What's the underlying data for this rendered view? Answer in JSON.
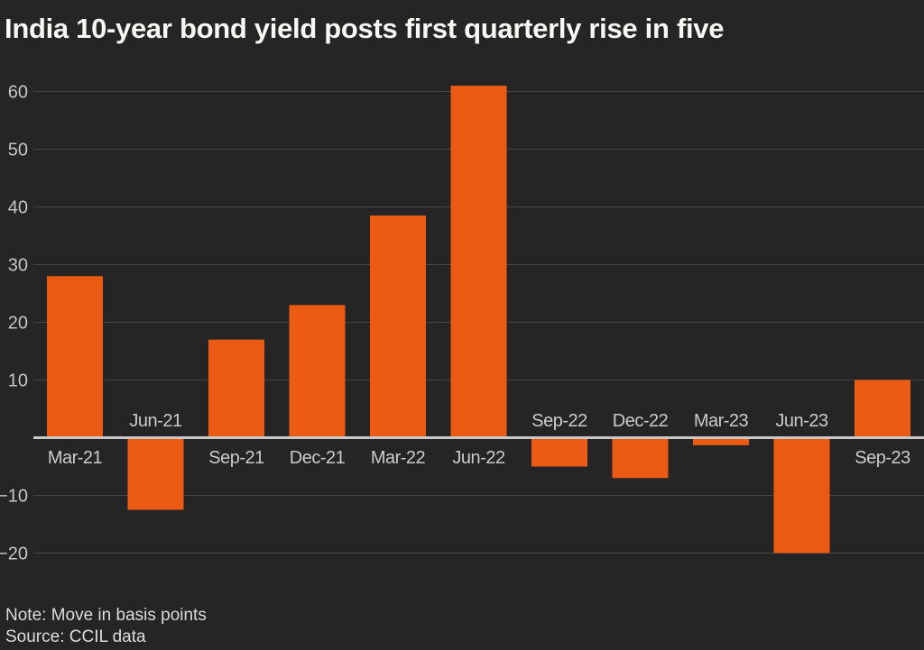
{
  "header": {
    "title": "India 10-year bond yield posts first quarterly rise in five"
  },
  "footer": {
    "note": "Note: Move in basis points",
    "source": "Source: CCIL data"
  },
  "colors": {
    "background": "#252525",
    "bar": "#EC5B13",
    "gridline": "#464646",
    "zero_line": "#C9C9C9",
    "title_text": "#F7F7F3",
    "axis_tick_text": "#C6C6C6",
    "category_text": "#CBCBCB",
    "footer_text": "#DCDCDC"
  },
  "chart_data": {
    "type": "bar",
    "title": "India 10-year bond yield posts first quarterly rise in five",
    "categories": [
      "Mar-21",
      "Jun-21",
      "Sep-21",
      "Dec-21",
      "Mar-22",
      "Jun-22",
      "Sep-22",
      "Dec-22",
      "Mar-23",
      "Jun-23",
      "Sep-23"
    ],
    "values": [
      28,
      -12.5,
      17,
      23,
      38.5,
      61,
      -5,
      -7,
      -1.3,
      -20,
      10
    ],
    "unit": "basis points",
    "xlabel": "",
    "ylabel": "",
    "yticks": [
      60,
      50,
      40,
      30,
      20,
      10,
      -10,
      -20
    ],
    "ylim": [
      -22,
      63
    ],
    "grid": true,
    "legend": false,
    "zero_baseline": true,
    "note": "Note: Move in basis points",
    "source": "Source: CCIL data"
  }
}
